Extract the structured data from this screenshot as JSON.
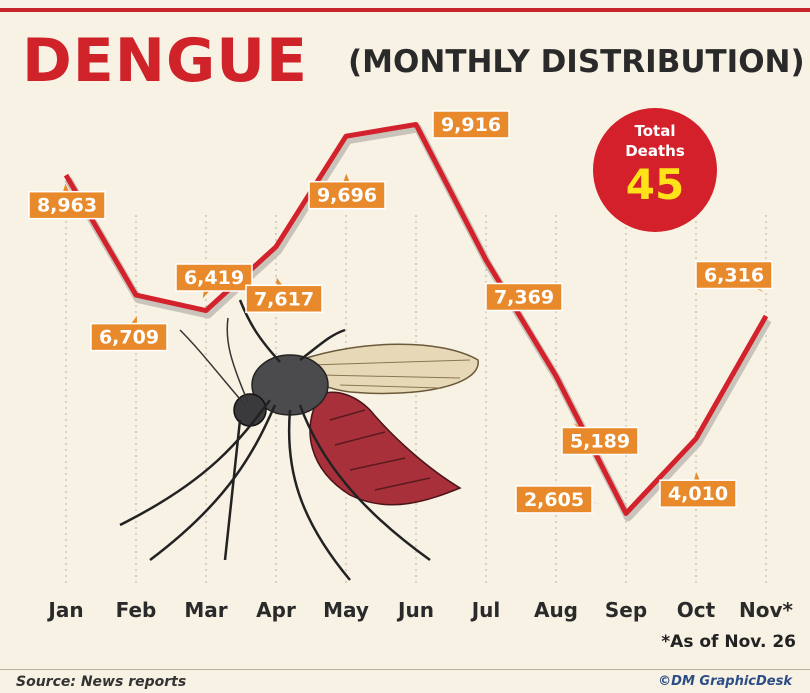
{
  "header": {
    "title": "DENGUE",
    "subtitle": "(MONTHLY DISTRIBUTION)"
  },
  "deaths_badge": {
    "line1": "Total",
    "line2": "Deaths",
    "value": "45"
  },
  "chart_data": {
    "type": "line",
    "categories": [
      "Jan",
      "Feb",
      "Mar",
      "Apr",
      "May",
      "Jun",
      "Jul",
      "Aug",
      "Sep",
      "Oct",
      "Nov*"
    ],
    "series": [
      {
        "values": [
          8963,
          6709,
          6419,
          7617,
          9696,
          9916,
          7369,
          5189,
          2605,
          4010,
          6316
        ],
        "labels": [
          "8,963",
          "6,709",
          "6,419",
          "7,617",
          "9,696",
          "9,916",
          "7,369",
          "5,189",
          "2,605",
          "4,010",
          "6,316"
        ]
      }
    ],
    "grid": "vertical dotted",
    "colors": {
      "line": "#d3222b",
      "label_bg": "#e88a2c",
      "label_text": "#ffffff"
    }
  },
  "footnote": "*As of Nov. 26",
  "footer": {
    "source": "Source: News reports",
    "credit": "©DM GraphicDesk"
  }
}
